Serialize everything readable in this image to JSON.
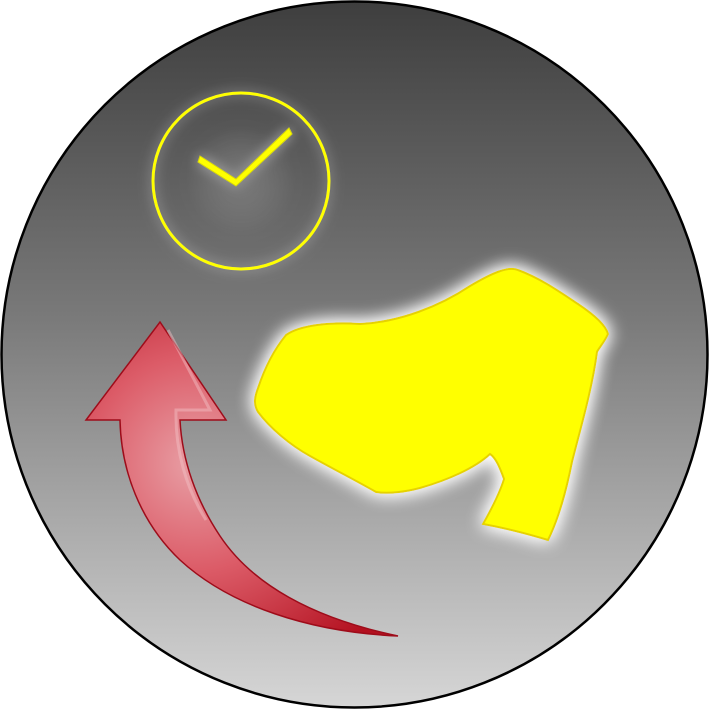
{
  "icon": {
    "kind": "shoe-return-icon",
    "background": {
      "gradient_top": "#3e3e3e",
      "gradient_mid": "#7a7a7a",
      "gradient_bottom": "#d6d6d6",
      "border_color": "#000000"
    },
    "check_badge": {
      "name": "check-circle-icon",
      "color": "#ffff00"
    },
    "shoe": {
      "name": "shoe-icon",
      "fill": "#ffff00",
      "glow": "#ffffff"
    },
    "arrow": {
      "name": "return-arrow-icon",
      "color_light": "#e38a92",
      "color_dark": "#c11b2c"
    }
  }
}
